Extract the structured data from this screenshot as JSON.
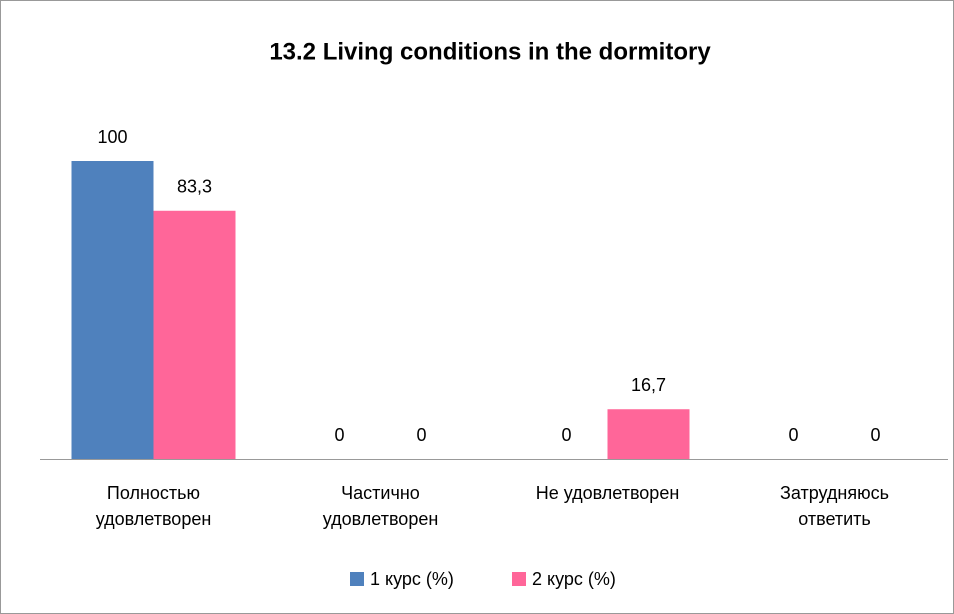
{
  "chart_data": {
    "type": "bar",
    "title": "13.2 Living conditions in the dormitory",
    "categories": [
      "Полностью удовлетворен",
      "Частично удовлетворен",
      "Не удовлетворен",
      "Затрудняюсь ответить"
    ],
    "series": [
      {
        "name": "1 курс (%)",
        "color": "#4f81bd",
        "values": [
          100,
          0,
          0,
          0
        ]
      },
      {
        "name": "2 курс (%)",
        "color": "#ff6699",
        "values": [
          83.3,
          0,
          16.7,
          0
        ],
        "value_labels": [
          "83,3",
          "0",
          "16,7",
          "0"
        ]
      }
    ],
    "legend": "bottom"
  }
}
